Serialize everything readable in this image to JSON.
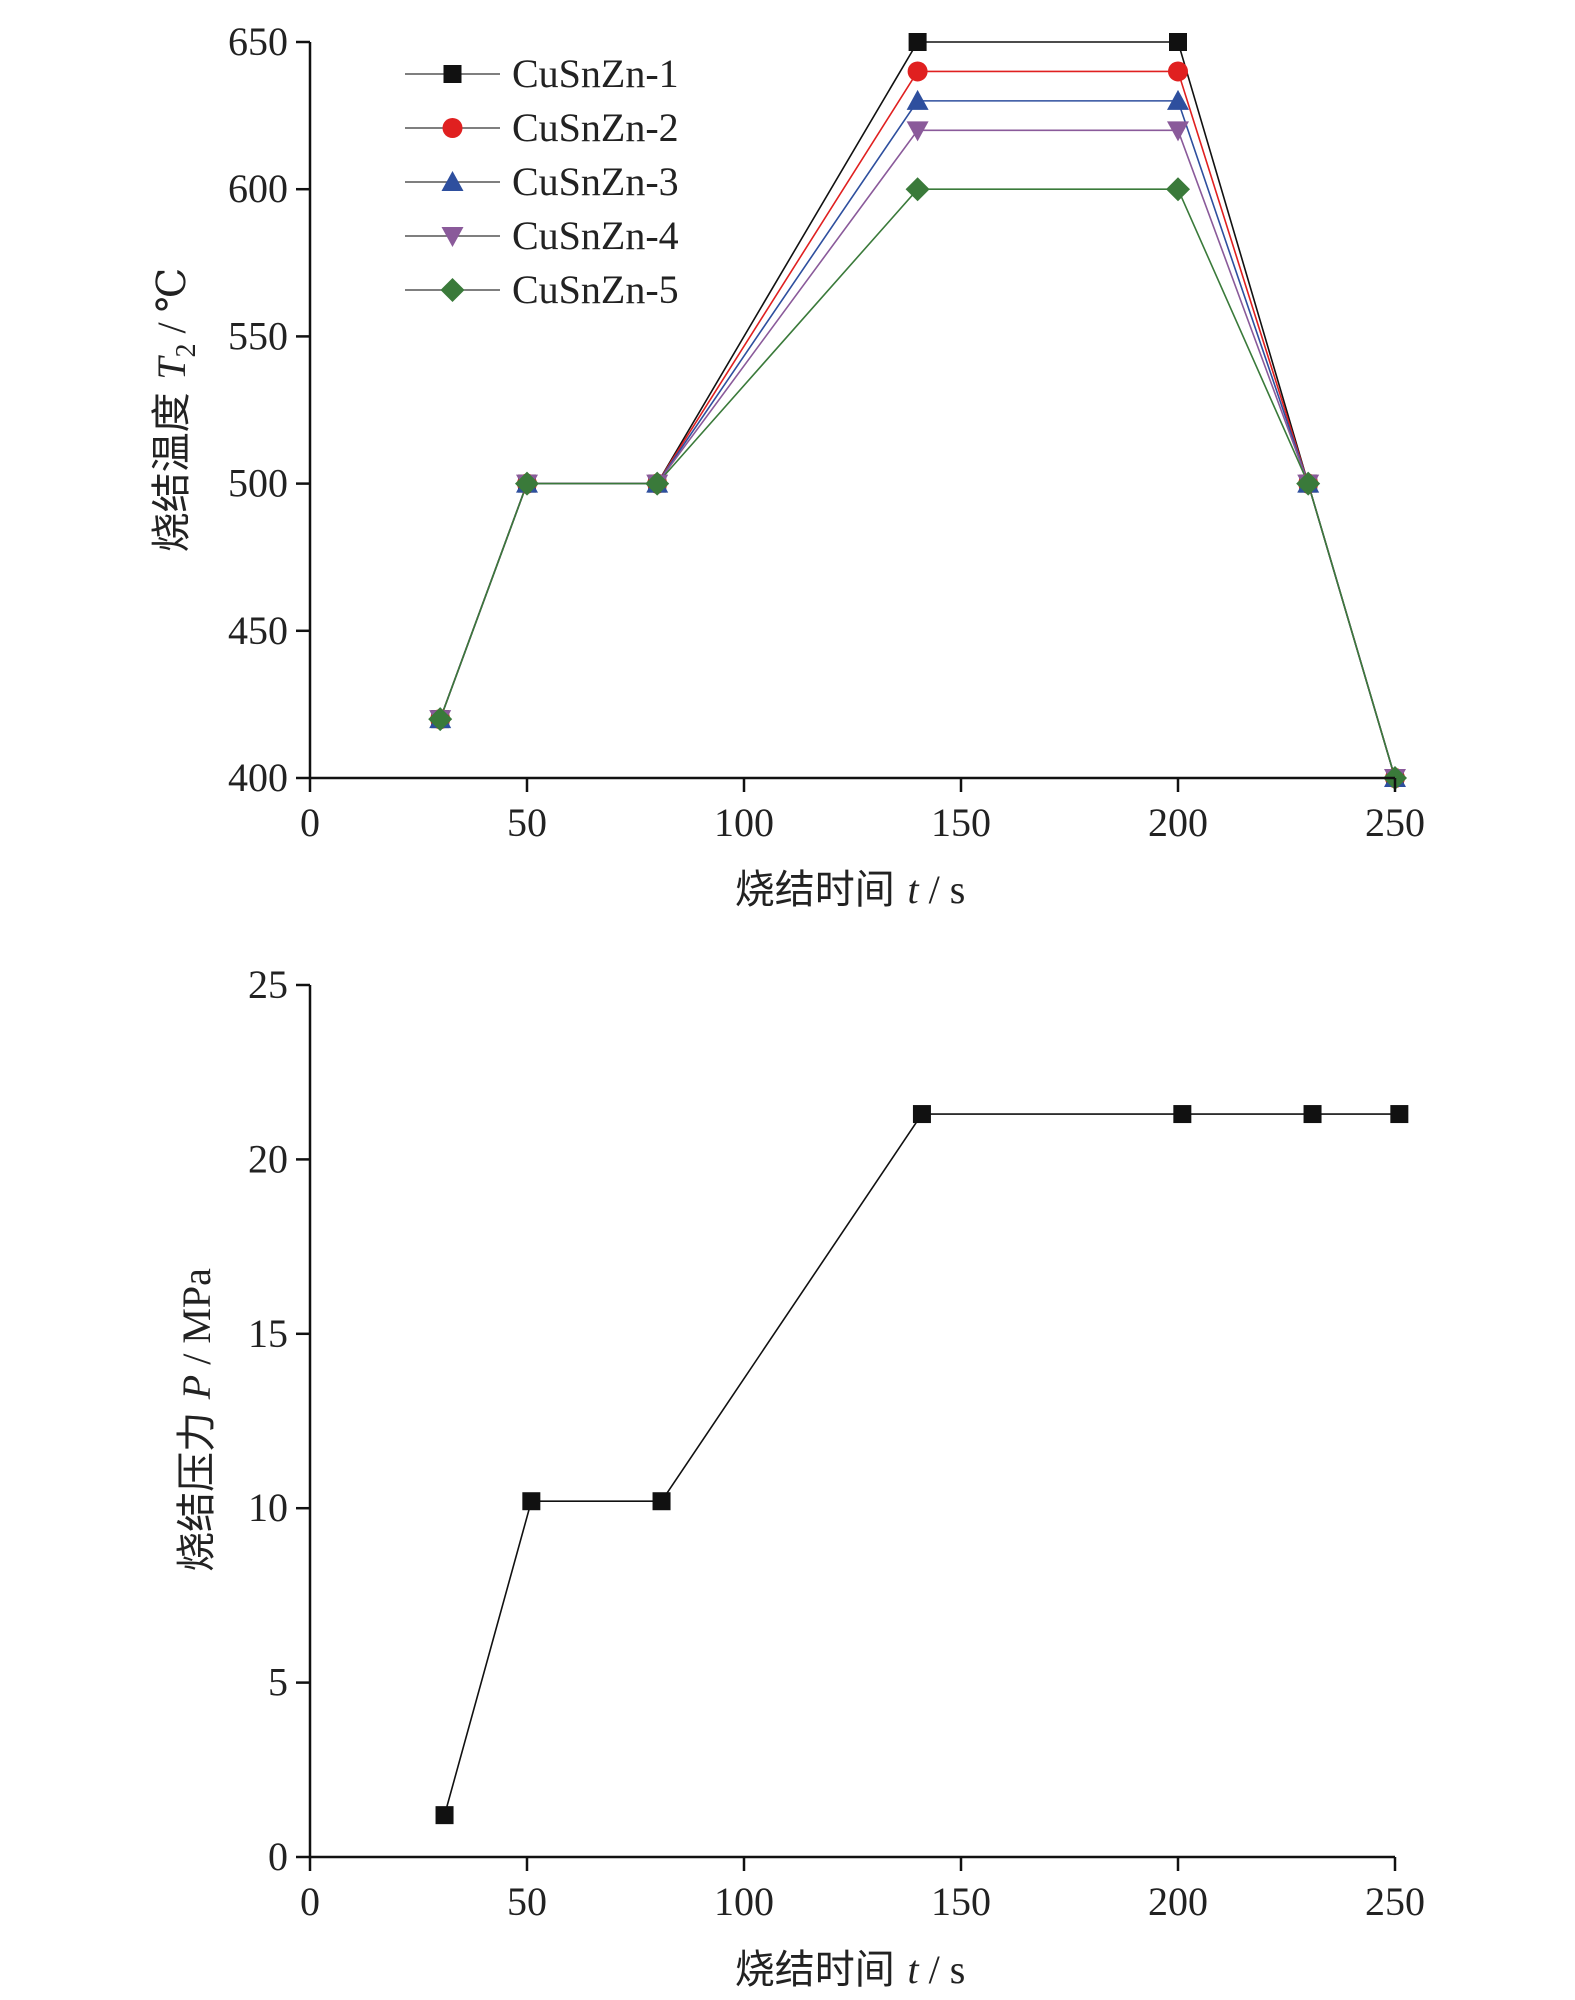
{
  "chart_data": [
    {
      "type": "line",
      "xlabel": {
        "cn": "烧结时间",
        "var": "t",
        "unit": " / s"
      },
      "ylabel": {
        "cn": "烧结温度",
        "var": "T",
        "sub": "2",
        "unit": " / ℃"
      },
      "xlim": [
        0,
        250
      ],
      "ylim": [
        400,
        650
      ],
      "xticks": [
        0,
        50,
        100,
        150,
        200,
        250
      ],
      "yticks": [
        400,
        450,
        500,
        550,
        600,
        650
      ],
      "x": [
        30,
        50,
        80,
        140,
        200,
        230,
        250
      ],
      "legend_position": "top-left",
      "series": [
        {
          "name": "CuSnZn-1",
          "color": "#111111",
          "marker": "square",
          "values": [
            420,
            500,
            500,
            650,
            650,
            500,
            400
          ]
        },
        {
          "name": "CuSnZn-2",
          "color": "#e02020",
          "marker": "circle",
          "values": [
            420,
            500,
            500,
            640,
            640,
            500,
            400
          ]
        },
        {
          "name": "CuSnZn-3",
          "color": "#2e4f9e",
          "marker": "triangle-up",
          "values": [
            420,
            500,
            500,
            630,
            630,
            500,
            400
          ]
        },
        {
          "name": "CuSnZn-4",
          "color": "#8a5a9a",
          "marker": "triangle-down",
          "values": [
            420,
            500,
            500,
            620,
            620,
            500,
            400
          ]
        },
        {
          "name": "CuSnZn-5",
          "color": "#3a7a3a",
          "marker": "diamond",
          "values": [
            420,
            500,
            500,
            600,
            600,
            500,
            400
          ]
        }
      ]
    },
    {
      "type": "line",
      "xlabel": {
        "cn": "烧结时间",
        "var": "t",
        "unit": " / s"
      },
      "ylabel": {
        "cn": "烧结压力",
        "var": "P",
        "sub": "",
        "unit": " / MPa"
      },
      "xlim": [
        0,
        250
      ],
      "ylim": [
        0,
        25
      ],
      "xticks": [
        0,
        50,
        100,
        150,
        200,
        250
      ],
      "yticks": [
        0,
        5,
        10,
        15,
        20,
        25
      ],
      "x": [
        31,
        51,
        81,
        141,
        201,
        231,
        251
      ],
      "series": [
        {
          "name": "",
          "color": "#111111",
          "marker": "square",
          "values": [
            1.2,
            10.2,
            10.2,
            21.3,
            21.3,
            21.3,
            21.3
          ]
        }
      ]
    }
  ]
}
